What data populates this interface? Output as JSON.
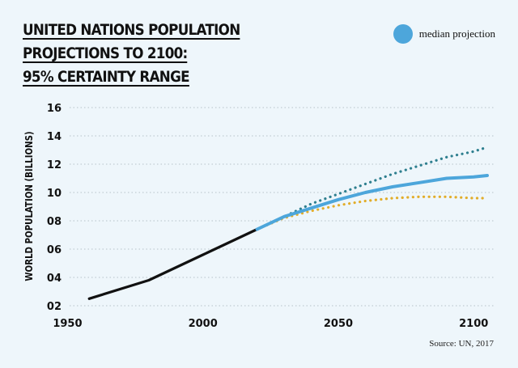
{
  "title_lines": [
    "UNITED NATIONS POPULATION",
    "PROJECTIONS TO 2100:",
    "95% CERTAINTY RANGE"
  ],
  "source": "Source: UN, 2017",
  "colors": {
    "background": "#eef6fb",
    "historical": "#111111",
    "median": "#4da6db",
    "upper": "#2e7f8f",
    "lower": "#e2ad2a",
    "grid": "#b7c2c8"
  },
  "chart_data": {
    "type": "line",
    "ylabel": "WORLD POPULATION (BILLIONS)",
    "xlabel": "",
    "xlim": [
      1943,
      2108
    ],
    "ylim": [
      1.2,
      16
    ],
    "x_ticks": [
      1950,
      2000,
      2050,
      2100
    ],
    "x_tick_labels": [
      "1950",
      "2000",
      "2050",
      "2100"
    ],
    "y_ticks": [
      2,
      4,
      6,
      8,
      10,
      12,
      14,
      16
    ],
    "y_tick_labels": [
      "02",
      "04",
      "06",
      "08",
      "10",
      "12",
      "14",
      "16"
    ],
    "grid": "horizontal-dotted",
    "legend": {
      "position": "top-right",
      "entries": [
        "median projection"
      ]
    },
    "series": [
      {
        "key": "historical",
        "style": "solid",
        "x": [
          1958,
          1980,
          2000,
          2020
        ],
        "y": [
          2.5,
          3.8,
          5.6,
          7.4
        ]
      },
      {
        "key": "median",
        "name": "median projection",
        "style": "solid",
        "x": [
          2020,
          2030,
          2040,
          2050,
          2060,
          2070,
          2080,
          2090,
          2100,
          2105
        ],
        "y": [
          7.4,
          8.3,
          8.9,
          9.5,
          10.0,
          10.4,
          10.7,
          11.0,
          11.1,
          11.2
        ]
      },
      {
        "key": "upper",
        "style": "dotted",
        "x": [
          2020,
          2030,
          2040,
          2050,
          2060,
          2070,
          2080,
          2090,
          2100,
          2105
        ],
        "y": [
          7.4,
          8.3,
          9.2,
          9.9,
          10.6,
          11.3,
          11.9,
          12.5,
          12.9,
          13.2
        ]
      },
      {
        "key": "lower",
        "style": "dotted",
        "x": [
          2020,
          2030,
          2040,
          2050,
          2060,
          2070,
          2080,
          2090,
          2100,
          2105
        ],
        "y": [
          7.4,
          8.2,
          8.7,
          9.1,
          9.4,
          9.6,
          9.7,
          9.7,
          9.6,
          9.6
        ]
      }
    ]
  }
}
